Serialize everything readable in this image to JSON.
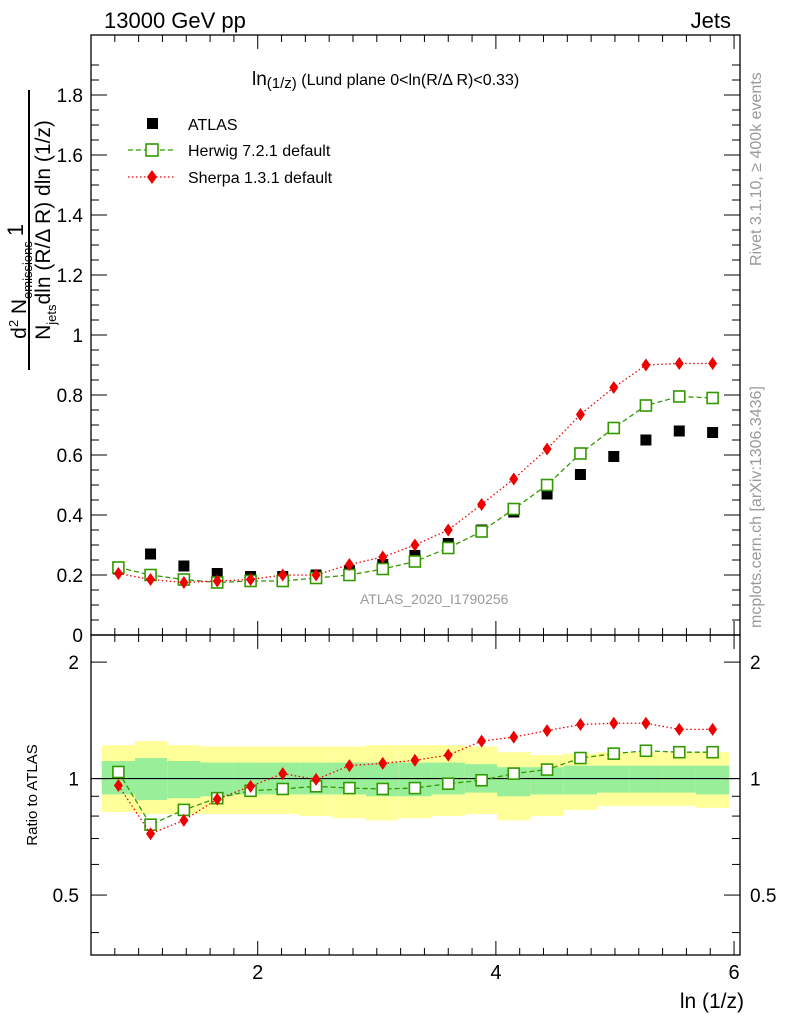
{
  "header": {
    "left": "13000 GeV pp",
    "right": "Jets"
  },
  "side_labels": {
    "rivet": "Rivet 3.1.10, ≥ 400k events",
    "mcplots": "mcplots.cern.ch [arXiv:1306.3436]"
  },
  "chart_data": [
    {
      "type": "scatter",
      "title": "ln(1/z) (Lund plane 0<ln(R/Δ R)<0.33)",
      "title_main": "ln",
      "title_small": "(1/z)",
      "title_rest": " (Lund plane 0<ln(R/Δ R)<0.33)",
      "watermark": "ATLAS_2020_I1790256",
      "ylabel_parts": {
        "one": "1",
        "d2": "d",
        "two": "2",
        "N": " N",
        "emissions": "emissions",
        "Njets_N": "N",
        "jets": "jets",
        "denominator": "dln (R/Δ R) dln (1/z)"
      },
      "xlim": [
        0.6,
        6.05
      ],
      "ylim": [
        0,
        2.0
      ],
      "yticks": [
        0,
        0.2,
        0.4,
        0.6,
        0.8,
        1,
        1.2,
        1.4,
        1.6,
        1.8
      ],
      "ytick_labels": [
        "0",
        "0.2",
        "0.4",
        "0.6",
        "0.8",
        "1",
        "1.2",
        "1.4",
        "1.6",
        "1.8"
      ],
      "x": [
        0.83,
        1.1,
        1.38,
        1.66,
        1.94,
        2.21,
        2.49,
        2.77,
        3.05,
        3.32,
        3.6,
        3.88,
        4.15,
        4.43,
        4.71,
        4.99,
        5.26,
        5.54,
        5.82
      ],
      "legend": {
        "atlas": "ATLAS",
        "herwig": "Herwig 7.2.1 default",
        "sherpa": "Sherpa 1.3.1 default"
      },
      "series": [
        {
          "name": "ATLAS",
          "color": "#000000",
          "marker": "square-filled",
          "values": [
            0.22,
            0.27,
            0.23,
            0.205,
            0.195,
            0.195,
            0.2,
            0.215,
            0.235,
            0.265,
            0.305,
            0.35,
            0.41,
            0.47,
            0.535,
            0.595,
            0.65,
            0.68,
            0.675
          ]
        },
        {
          "name": "Herwig 7.2.1 default",
          "color": "#339900",
          "marker": "square-open",
          "line": "dashed",
          "values": [
            0.225,
            0.2,
            0.185,
            0.175,
            0.18,
            0.18,
            0.19,
            0.2,
            0.22,
            0.245,
            0.29,
            0.345,
            0.42,
            0.5,
            0.605,
            0.69,
            0.765,
            0.795,
            0.79
          ]
        },
        {
          "name": "Sherpa 1.3.1 default",
          "color": "#ee0000",
          "marker": "diamond",
          "line": "dotted",
          "values": [
            0.205,
            0.185,
            0.175,
            0.18,
            0.185,
            0.2,
            0.2,
            0.235,
            0.26,
            0.3,
            0.35,
            0.435,
            0.52,
            0.62,
            0.735,
            0.825,
            0.9,
            0.905,
            0.905
          ]
        }
      ]
    },
    {
      "type": "scatter",
      "ylabel": "Ratio to ATLAS",
      "xlabel": "ln (1/z)",
      "xlim": [
        0.6,
        6.05
      ],
      "ylim": [
        0.35,
        2.35
      ],
      "xticks": [
        2,
        4,
        6
      ],
      "xtick_labels": [
        "2",
        "4",
        "6"
      ],
      "yticks": [
        0.5,
        1,
        2
      ],
      "ytick_labels": [
        "0.5",
        "1",
        "2"
      ],
      "x": [
        0.83,
        1.1,
        1.38,
        1.66,
        1.94,
        2.21,
        2.49,
        2.77,
        3.05,
        3.32,
        3.6,
        3.88,
        4.15,
        4.43,
        4.71,
        4.99,
        5.26,
        5.54,
        5.82
      ],
      "bin_edges": [
        0.69,
        0.97,
        1.24,
        1.52,
        1.8,
        2.07,
        2.35,
        2.63,
        2.91,
        3.18,
        3.46,
        3.74,
        4.01,
        4.29,
        4.57,
        4.85,
        5.12,
        5.4,
        5.68,
        5.96
      ],
      "band_outer": {
        "color": "#ffff99",
        "lo": [
          0.82,
          0.81,
          0.81,
          0.81,
          0.81,
          0.81,
          0.8,
          0.79,
          0.78,
          0.79,
          0.8,
          0.81,
          0.78,
          0.8,
          0.83,
          0.85,
          0.85,
          0.85,
          0.84
        ],
        "hi": [
          1.22,
          1.25,
          1.22,
          1.21,
          1.21,
          1.21,
          1.21,
          1.21,
          1.22,
          1.22,
          1.22,
          1.21,
          1.17,
          1.15,
          1.16,
          1.17,
          1.17,
          1.17,
          1.17
        ]
      },
      "band_inner": {
        "color": "#99ee99",
        "lo": [
          0.91,
          0.88,
          0.89,
          0.9,
          0.91,
          0.91,
          0.91,
          0.91,
          0.9,
          0.9,
          0.91,
          0.92,
          0.9,
          0.91,
          0.91,
          0.92,
          0.92,
          0.92,
          0.91
        ],
        "hi": [
          1.11,
          1.13,
          1.11,
          1.1,
          1.1,
          1.1,
          1.1,
          1.1,
          1.1,
          1.1,
          1.1,
          1.09,
          1.07,
          1.07,
          1.08,
          1.08,
          1.08,
          1.08,
          1.08
        ]
      },
      "series": [
        {
          "name": "Herwig 7.2.1 default",
          "color": "#339900",
          "marker": "square-open",
          "line": "dashed",
          "values": [
            1.04,
            0.76,
            0.83,
            0.89,
            0.93,
            0.94,
            0.955,
            0.945,
            0.94,
            0.945,
            0.97,
            0.99,
            1.03,
            1.055,
            1.13,
            1.16,
            1.18,
            1.17,
            1.17
          ]
        },
        {
          "name": "Sherpa 1.3.1 default",
          "color": "#ee0000",
          "marker": "diamond",
          "line": "dotted",
          "values": [
            0.96,
            0.72,
            0.78,
            0.885,
            0.955,
            1.03,
            0.995,
            1.08,
            1.095,
            1.115,
            1.15,
            1.25,
            1.28,
            1.33,
            1.38,
            1.39,
            1.39,
            1.34,
            1.34
          ]
        }
      ]
    }
  ]
}
